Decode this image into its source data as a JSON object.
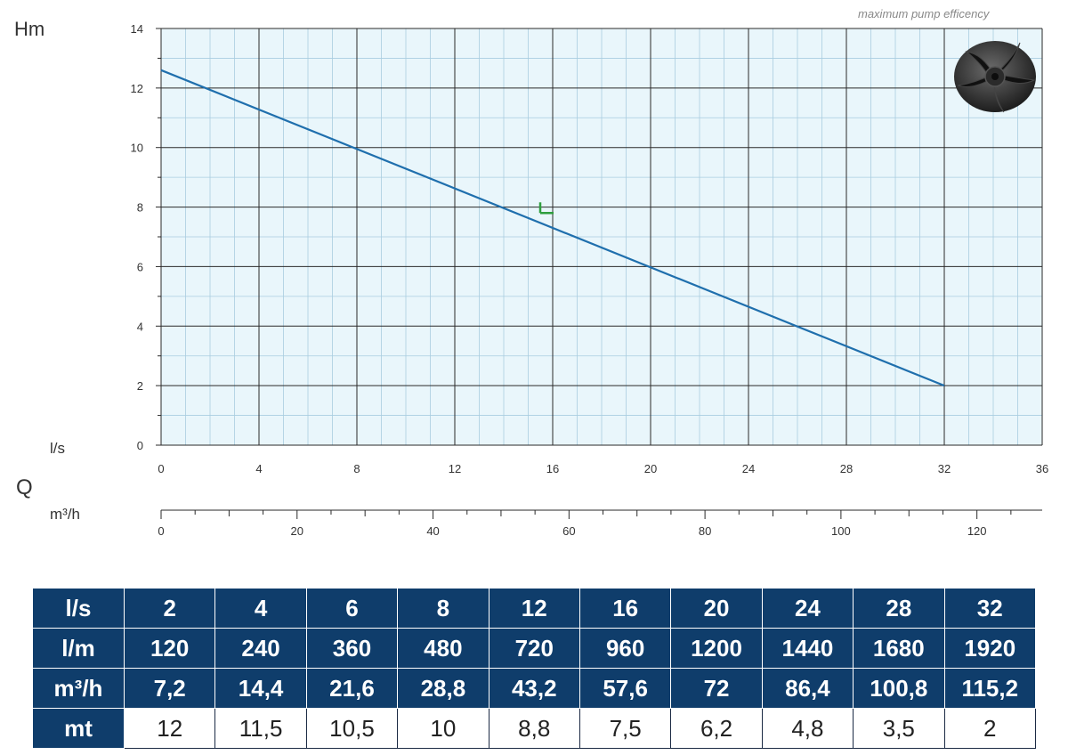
{
  "labels": {
    "hm": "Hm",
    "q": "Q",
    "ls": "l/s",
    "m3h": "m³/h",
    "caption": "maximum pump efficency"
  },
  "chart_data": {
    "type": "line",
    "x_axis": {
      "unit": "l/s",
      "min": 0,
      "max": 36,
      "ticks": [
        "0",
        "4",
        "8",
        "12",
        "16",
        "20",
        "24",
        "28",
        "32",
        "36"
      ]
    },
    "x2_axis": {
      "unit": "m³/h",
      "min": 0,
      "max": 129.6,
      "ticks": [
        "0",
        "20",
        "40",
        "60",
        "80",
        "100",
        "120"
      ]
    },
    "y_axis": {
      "unit": "Hm",
      "min": 0,
      "max": 14,
      "ticks": [
        "0",
        "2",
        "4",
        "6",
        "8",
        "10",
        "12",
        "14"
      ]
    },
    "grid": true,
    "series": [
      {
        "points": [
          [
            0,
            12.6
          ],
          [
            32,
            2
          ]
        ],
        "color": "#1f6fad"
      }
    ],
    "bep_marker": {
      "x": 15.6,
      "y": 7.8,
      "color": "#2e9e3e"
    }
  },
  "table": {
    "rows": [
      {
        "label": "l/s",
        "values": [
          "2",
          "4",
          "6",
          "8",
          "12",
          "16",
          "20",
          "24",
          "28",
          "32"
        ]
      },
      {
        "label": "l/m",
        "values": [
          "120",
          "240",
          "360",
          "480",
          "720",
          "960",
          "1200",
          "1440",
          "1680",
          "1920"
        ]
      },
      {
        "label": "m³/h",
        "values": [
          "7,2",
          "14,4",
          "21,6",
          "28,8",
          "43,2",
          "57,6",
          "72",
          "86,4",
          "100,8",
          "115,2"
        ]
      },
      {
        "label": "mt",
        "values": [
          "12",
          "11,5",
          "10,5",
          "10",
          "8,8",
          "7,5",
          "6,2",
          "4,8",
          "3,5",
          "2"
        ]
      }
    ]
  }
}
